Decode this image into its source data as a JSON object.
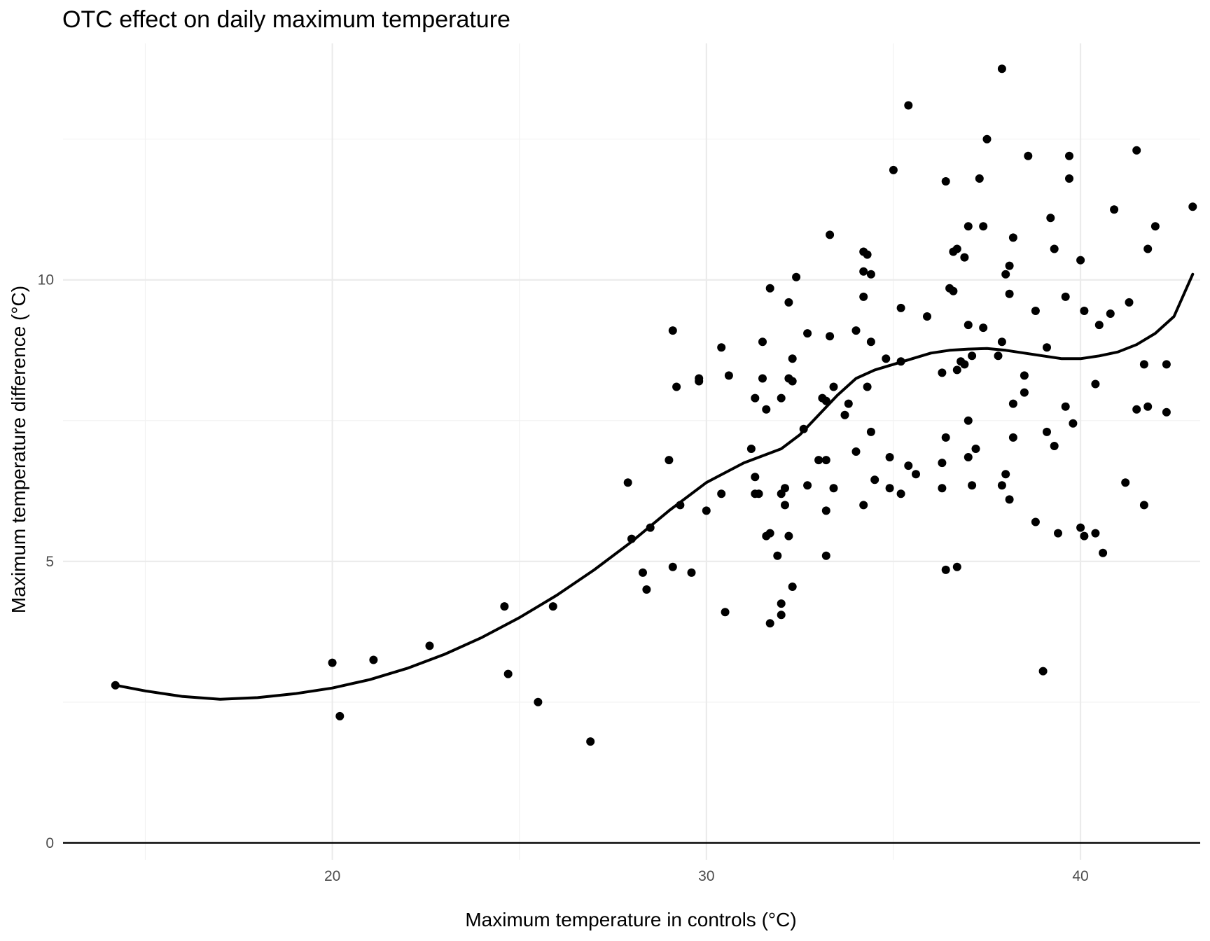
{
  "chart_data": {
    "type": "scatter",
    "title": "OTC effect on daily maximum temperature",
    "xlabel": "Maximum temperature in controls (°C)",
    "ylabel": "Maximum temperature difference (°C)",
    "xlim": [
      12.8,
      43.2
    ],
    "ylim": [
      -0.3,
      14.2
    ],
    "x_ticks": [
      20,
      30,
      40
    ],
    "x_tick_labels": [
      "20",
      "30",
      "40"
    ],
    "y_ticks": [
      0,
      5,
      10
    ],
    "y_tick_labels": [
      "0",
      "5",
      "10"
    ],
    "x_minor_ticks": [
      15,
      25,
      35
    ],
    "y_minor_ticks": [
      2.5,
      7.5,
      12.5
    ],
    "grid": true,
    "reference_line_y": 0,
    "points": [
      [
        14.2,
        2.8
      ],
      [
        20.0,
        3.2
      ],
      [
        20.2,
        2.25
      ],
      [
        21.1,
        3.25
      ],
      [
        22.6,
        3.5
      ],
      [
        24.6,
        4.2
      ],
      [
        24.7,
        3.0
      ],
      [
        25.5,
        2.5
      ],
      [
        25.9,
        4.2
      ],
      [
        26.9,
        1.8
      ],
      [
        27.9,
        6.4
      ],
      [
        28.0,
        5.4
      ],
      [
        28.3,
        4.8
      ],
      [
        28.4,
        4.5
      ],
      [
        28.5,
        5.6
      ],
      [
        29.0,
        6.8
      ],
      [
        29.1,
        9.1
      ],
      [
        29.1,
        4.9
      ],
      [
        29.2,
        8.1
      ],
      [
        29.3,
        6.0
      ],
      [
        29.6,
        4.8
      ],
      [
        29.8,
        8.2
      ],
      [
        29.8,
        8.25
      ],
      [
        30.0,
        5.9
      ],
      [
        30.4,
        8.8
      ],
      [
        30.4,
        6.2
      ],
      [
        30.5,
        4.1
      ],
      [
        30.6,
        8.3
      ],
      [
        31.2,
        7.0
      ],
      [
        31.3,
        6.2
      ],
      [
        31.3,
        6.5
      ],
      [
        31.3,
        7.9
      ],
      [
        31.4,
        6.2
      ],
      [
        31.5,
        8.9
      ],
      [
        31.5,
        8.25
      ],
      [
        31.6,
        7.7
      ],
      [
        31.7,
        9.85
      ],
      [
        31.6,
        5.45
      ],
      [
        31.7,
        5.5
      ],
      [
        31.7,
        3.9
      ],
      [
        31.9,
        5.1
      ],
      [
        32.0,
        7.9
      ],
      [
        32.0,
        4.25
      ],
      [
        32.0,
        4.05
      ],
      [
        32.0,
        6.2
      ],
      [
        32.1,
        6.3
      ],
      [
        32.1,
        6.0
      ],
      [
        32.2,
        8.25
      ],
      [
        32.2,
        5.45
      ],
      [
        32.2,
        9.6
      ],
      [
        32.3,
        8.6
      ],
      [
        32.3,
        8.2
      ],
      [
        32.3,
        4.55
      ],
      [
        32.4,
        10.05
      ],
      [
        32.6,
        7.35
      ],
      [
        32.7,
        9.05
      ],
      [
        32.7,
        6.35
      ],
      [
        33.0,
        6.8
      ],
      [
        33.1,
        7.9
      ],
      [
        33.2,
        7.85
      ],
      [
        33.2,
        6.8
      ],
      [
        33.2,
        5.1
      ],
      [
        33.2,
        5.9
      ],
      [
        33.3,
        10.8
      ],
      [
        33.3,
        9.0
      ],
      [
        33.4,
        8.1
      ],
      [
        33.4,
        6.3
      ],
      [
        33.7,
        7.6
      ],
      [
        33.8,
        7.8
      ],
      [
        34.0,
        9.1
      ],
      [
        34.0,
        6.95
      ],
      [
        34.2,
        9.7
      ],
      [
        34.2,
        6.0
      ],
      [
        34.2,
        10.15
      ],
      [
        34.2,
        10.5
      ],
      [
        34.3,
        10.45
      ],
      [
        34.3,
        8.1
      ],
      [
        34.4,
        10.1
      ],
      [
        34.4,
        8.9
      ],
      [
        34.4,
        7.3
      ],
      [
        34.5,
        6.45
      ],
      [
        34.8,
        8.6
      ],
      [
        34.9,
        6.3
      ],
      [
        34.9,
        6.85
      ],
      [
        35.0,
        11.95
      ],
      [
        35.2,
        8.55
      ],
      [
        35.2,
        9.5
      ],
      [
        35.2,
        6.2
      ],
      [
        35.4,
        13.1
      ],
      [
        35.4,
        6.7
      ],
      [
        35.6,
        6.55
      ],
      [
        35.9,
        9.35
      ],
      [
        36.3,
        8.35
      ],
      [
        36.3,
        6.3
      ],
      [
        36.3,
        6.75
      ],
      [
        36.4,
        4.85
      ],
      [
        36.4,
        7.2
      ],
      [
        36.4,
        11.75
      ],
      [
        36.5,
        9.85
      ],
      [
        36.6,
        9.8
      ],
      [
        36.6,
        10.5
      ],
      [
        36.7,
        10.55
      ],
      [
        36.7,
        8.4
      ],
      [
        36.7,
        4.9
      ],
      [
        36.8,
        8.55
      ],
      [
        36.9,
        8.5
      ],
      [
        36.9,
        10.4
      ],
      [
        37.0,
        10.95
      ],
      [
        37.0,
        9.2
      ],
      [
        37.0,
        7.5
      ],
      [
        37.0,
        6.85
      ],
      [
        37.1,
        8.65
      ],
      [
        37.1,
        6.35
      ],
      [
        37.2,
        7.0
      ],
      [
        37.3,
        11.8
      ],
      [
        37.4,
        9.15
      ],
      [
        37.4,
        10.95
      ],
      [
        37.5,
        12.5
      ],
      [
        37.8,
        8.65
      ],
      [
        37.9,
        8.9
      ],
      [
        37.9,
        6.35
      ],
      [
        37.9,
        13.75
      ],
      [
        38.0,
        10.1
      ],
      [
        38.0,
        6.55
      ],
      [
        38.1,
        9.75
      ],
      [
        38.1,
        10.25
      ],
      [
        38.1,
        6.1
      ],
      [
        38.2,
        7.2
      ],
      [
        38.2,
        10.75
      ],
      [
        38.2,
        7.8
      ],
      [
        38.5,
        8.3
      ],
      [
        38.5,
        8.0
      ],
      [
        38.6,
        12.2
      ],
      [
        38.8,
        9.45
      ],
      [
        38.8,
        5.7
      ],
      [
        39.0,
        3.05
      ],
      [
        39.1,
        8.8
      ],
      [
        39.1,
        7.3
      ],
      [
        39.2,
        11.1
      ],
      [
        39.3,
        7.05
      ],
      [
        39.3,
        10.55
      ],
      [
        39.4,
        5.5
      ],
      [
        39.6,
        9.7
      ],
      [
        39.6,
        7.75
      ],
      [
        39.7,
        11.8
      ],
      [
        39.7,
        12.2
      ],
      [
        39.8,
        7.45
      ],
      [
        40.0,
        10.35
      ],
      [
        40.0,
        5.6
      ],
      [
        40.1,
        5.45
      ],
      [
        40.1,
        9.45
      ],
      [
        40.4,
        8.15
      ],
      [
        40.4,
        5.5
      ],
      [
        40.5,
        9.2
      ],
      [
        40.6,
        5.15
      ],
      [
        40.8,
        9.4
      ],
      [
        40.9,
        11.25
      ],
      [
        41.2,
        6.4
      ],
      [
        41.3,
        9.6
      ],
      [
        41.5,
        12.3
      ],
      [
        41.5,
        7.7
      ],
      [
        41.7,
        8.5
      ],
      [
        41.7,
        6.0
      ],
      [
        41.8,
        7.75
      ],
      [
        41.8,
        10.55
      ],
      [
        42.0,
        10.95
      ],
      [
        42.3,
        7.65
      ],
      [
        42.3,
        8.5
      ],
      [
        43.0,
        11.3
      ]
    ],
    "smooth_line": [
      [
        14.2,
        2.8
      ],
      [
        15.0,
        2.7
      ],
      [
        16.0,
        2.6
      ],
      [
        17.0,
        2.55
      ],
      [
        18.0,
        2.58
      ],
      [
        19.0,
        2.65
      ],
      [
        20.0,
        2.75
      ],
      [
        21.0,
        2.9
      ],
      [
        22.0,
        3.1
      ],
      [
        23.0,
        3.35
      ],
      [
        24.0,
        3.65
      ],
      [
        25.0,
        4.0
      ],
      [
        26.0,
        4.4
      ],
      [
        27.0,
        4.85
      ],
      [
        28.0,
        5.35
      ],
      [
        29.0,
        5.9
      ],
      [
        30.0,
        6.4
      ],
      [
        31.0,
        6.75
      ],
      [
        32.0,
        7.0
      ],
      [
        32.5,
        7.25
      ],
      [
        33.0,
        7.6
      ],
      [
        33.5,
        7.95
      ],
      [
        34.0,
        8.25
      ],
      [
        34.5,
        8.4
      ],
      [
        35.0,
        8.5
      ],
      [
        35.5,
        8.6
      ],
      [
        36.0,
        8.7
      ],
      [
        36.5,
        8.75
      ],
      [
        37.0,
        8.77
      ],
      [
        37.5,
        8.78
      ],
      [
        38.0,
        8.75
      ],
      [
        38.5,
        8.7
      ],
      [
        39.0,
        8.65
      ],
      [
        39.5,
        8.6
      ],
      [
        40.0,
        8.6
      ],
      [
        40.5,
        8.65
      ],
      [
        41.0,
        8.72
      ],
      [
        41.5,
        8.85
      ],
      [
        42.0,
        9.05
      ],
      [
        42.5,
        9.35
      ],
      [
        43.0,
        10.1
      ]
    ]
  }
}
